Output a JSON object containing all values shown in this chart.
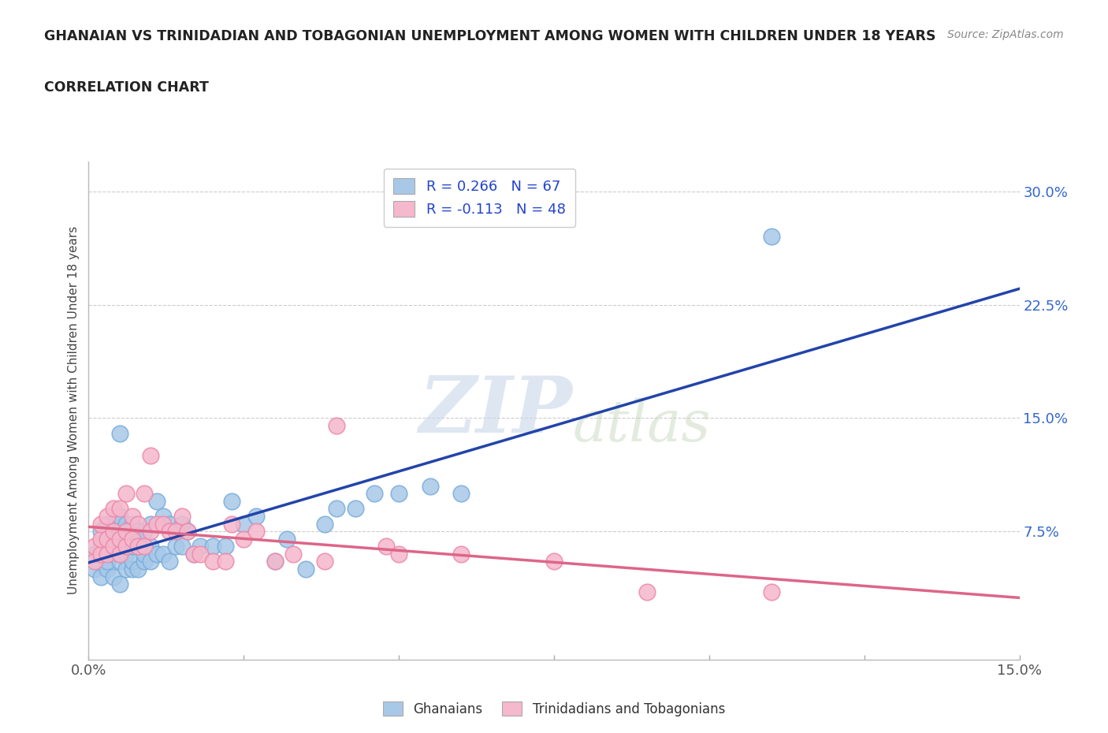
{
  "title": "GHANAIAN VS TRINIDADIAN AND TOBAGONIAN UNEMPLOYMENT AMONG WOMEN WITH CHILDREN UNDER 18 YEARS",
  "subtitle": "CORRELATION CHART",
  "source": "Source: ZipAtlas.com",
  "ylabel": "Unemployment Among Women with Children Under 18 years",
  "xlim": [
    0.0,
    0.15
  ],
  "ylim": [
    -0.01,
    0.32
  ],
  "yticks": [
    0.075,
    0.15,
    0.225,
    0.3
  ],
  "ytick_labels": [
    "7.5%",
    "15.0%",
    "22.5%",
    "30.0%"
  ],
  "xticks": [
    0.0,
    0.025,
    0.05,
    0.075,
    0.1,
    0.125,
    0.15
  ],
  "xtick_labels": [
    "0.0%",
    "",
    "",
    "",
    "",
    "",
    "15.0%"
  ],
  "ghanaian_color": "#a8c8e8",
  "ghanaian_edge_color": "#7aaedc",
  "trinidadian_color": "#f5b8cc",
  "trinidadian_edge_color": "#ee8aaa",
  "line_color_ghanaian": "#2244aa",
  "line_color_trinidadian": "#dd6688",
  "legend_text_color": "#2244cc",
  "R_ghanaian": 0.266,
  "N_ghanaian": 67,
  "R_trinidadian": -0.113,
  "N_trinidadian": 48,
  "ghanaian_x": [
    0.001,
    0.001,
    0.002,
    0.002,
    0.002,
    0.002,
    0.003,
    0.003,
    0.003,
    0.003,
    0.003,
    0.004,
    0.004,
    0.004,
    0.004,
    0.005,
    0.005,
    0.005,
    0.005,
    0.005,
    0.006,
    0.006,
    0.006,
    0.006,
    0.006,
    0.007,
    0.007,
    0.007,
    0.007,
    0.008,
    0.008,
    0.008,
    0.009,
    0.009,
    0.009,
    0.01,
    0.01,
    0.01,
    0.011,
    0.011,
    0.012,
    0.012,
    0.013,
    0.013,
    0.014,
    0.015,
    0.015,
    0.016,
    0.017,
    0.018,
    0.02,
    0.022,
    0.023,
    0.025,
    0.027,
    0.03,
    0.032,
    0.035,
    0.038,
    0.04,
    0.043,
    0.046,
    0.05,
    0.055,
    0.06,
    0.11,
    0.005
  ],
  "ghanaian_y": [
    0.05,
    0.06,
    0.045,
    0.06,
    0.065,
    0.075,
    0.05,
    0.055,
    0.065,
    0.07,
    0.08,
    0.045,
    0.06,
    0.065,
    0.08,
    0.04,
    0.055,
    0.06,
    0.075,
    0.085,
    0.05,
    0.06,
    0.065,
    0.075,
    0.08,
    0.05,
    0.055,
    0.065,
    0.08,
    0.05,
    0.065,
    0.075,
    0.055,
    0.06,
    0.075,
    0.055,
    0.065,
    0.08,
    0.06,
    0.095,
    0.06,
    0.085,
    0.055,
    0.08,
    0.065,
    0.065,
    0.08,
    0.075,
    0.06,
    0.065,
    0.065,
    0.065,
    0.095,
    0.08,
    0.085,
    0.055,
    0.07,
    0.05,
    0.08,
    0.09,
    0.09,
    0.1,
    0.1,
    0.105,
    0.1,
    0.27,
    0.14
  ],
  "trinidadian_x": [
    0.001,
    0.001,
    0.002,
    0.002,
    0.002,
    0.003,
    0.003,
    0.003,
    0.004,
    0.004,
    0.004,
    0.005,
    0.005,
    0.005,
    0.006,
    0.006,
    0.006,
    0.007,
    0.007,
    0.008,
    0.008,
    0.009,
    0.009,
    0.01,
    0.01,
    0.011,
    0.012,
    0.013,
    0.014,
    0.015,
    0.016,
    0.017,
    0.018,
    0.02,
    0.022,
    0.023,
    0.025,
    0.027,
    0.03,
    0.033,
    0.038,
    0.04,
    0.048,
    0.05,
    0.06,
    0.075,
    0.09,
    0.11
  ],
  "trinidadian_y": [
    0.055,
    0.065,
    0.06,
    0.07,
    0.08,
    0.06,
    0.07,
    0.085,
    0.065,
    0.075,
    0.09,
    0.06,
    0.07,
    0.09,
    0.065,
    0.075,
    0.1,
    0.07,
    0.085,
    0.065,
    0.08,
    0.065,
    0.1,
    0.075,
    0.125,
    0.08,
    0.08,
    0.075,
    0.075,
    0.085,
    0.075,
    0.06,
    0.06,
    0.055,
    0.055,
    0.08,
    0.07,
    0.075,
    0.055,
    0.06,
    0.055,
    0.145,
    0.065,
    0.06,
    0.06,
    0.055,
    0.035,
    0.035
  ],
  "background_color": "#ffffff",
  "grid_color": "#cccccc",
  "watermark_zip": "ZIP",
  "watermark_atlas": "atlas",
  "watermark_color_zip": "#c8d8e8",
  "watermark_color_atlas": "#c8d8c0"
}
